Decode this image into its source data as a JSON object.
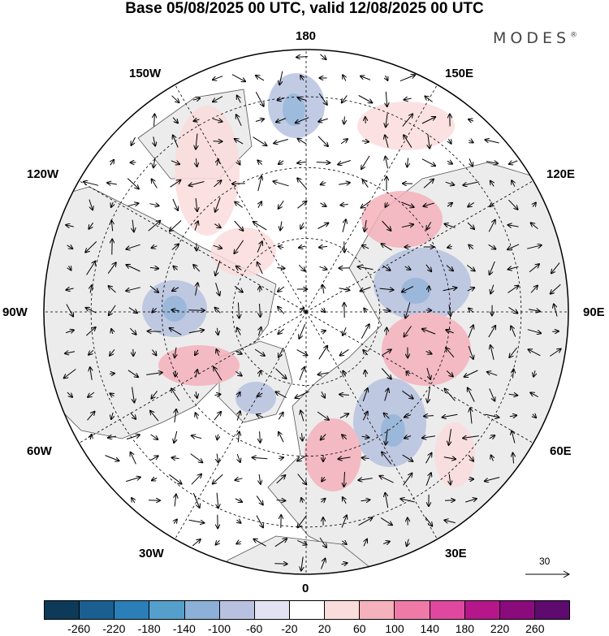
{
  "header": {
    "title": "Base 05/08/2025 00 UTC, valid 12/08/2025 00 UTC",
    "brand": "MODES",
    "brand_mark": "®"
  },
  "map": {
    "projection": "polar-stereographic-north",
    "longitude_labels": {
      "top": "180",
      "bottom": "0",
      "left": "90W",
      "right": "90E",
      "upper_left_1": "150W",
      "upper_left_2": "120W",
      "lower_left_1": "60W",
      "lower_left_2": "30W",
      "upper_right_1": "150E",
      "upper_right_2": "120E",
      "lower_right_1": "60E",
      "lower_right_2": "30E"
    },
    "reference_vector": "30",
    "land_color": "#ececec",
    "ocean_color": "#ffffff"
  },
  "colorbar": {
    "ticks": [
      "-260",
      "-220",
      "-180",
      "-140",
      "-100",
      "-60",
      "-20",
      "20",
      "60",
      "100",
      "140",
      "180",
      "220",
      "260"
    ],
    "colors": [
      "#0e3a5a",
      "#1a5f90",
      "#2b7fb8",
      "#559fcc",
      "#8db0d8",
      "#b8c2e0",
      "#e2e3f2",
      "#ffffff",
      "#fbdcdc",
      "#f5b2bc",
      "#ef7aa8",
      "#e0489f",
      "#b5178a",
      "#8b0a7c",
      "#5e0a6e"
    ]
  }
}
